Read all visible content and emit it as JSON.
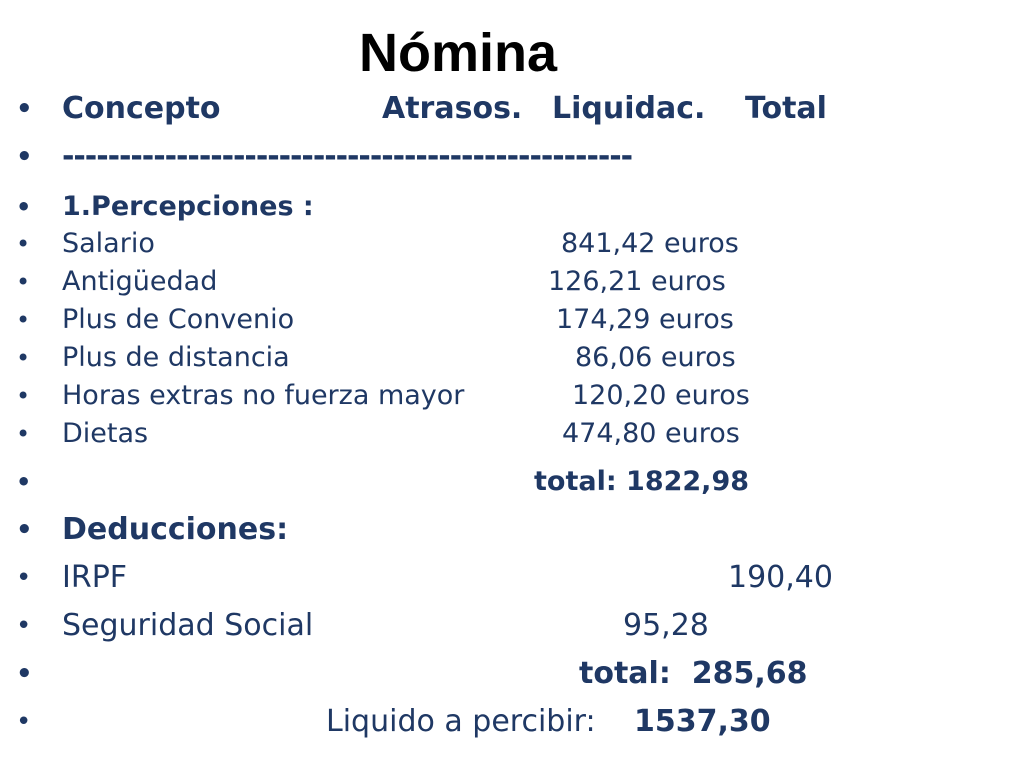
{
  "title": "Nómina",
  "bullet_glyph": "•",
  "header": {
    "concepto": "Concepto",
    "atrasos": "Atrasos.",
    "liquidac": "Liquidac.",
    "total": "Total"
  },
  "separator": "--------------------------------------------------",
  "percepciones": {
    "heading": "1.Percepciones :",
    "items": [
      {
        "concept": "Salario",
        "amount": "841,42 euros"
      },
      {
        "concept": "Antigüedad",
        "amount": "126,21 euros"
      },
      {
        "concept": "Plus de Convenio",
        "amount": "174,29 euros"
      },
      {
        "concept": "Plus de distancia",
        "amount": "86,06 euros"
      },
      {
        "concept": "Horas extras no fuerza mayor",
        "amount": "120,20 euros"
      },
      {
        "concept": "Dietas",
        "amount": "474,80 euros"
      }
    ],
    "total": "total: 1822,98"
  },
  "deducciones": {
    "heading": "Deducciones:",
    "items": [
      {
        "concept": "IRPF",
        "amount": "190,40"
      },
      {
        "concept": "Seguridad Social",
        "amount": "95,28"
      }
    ],
    "total": "total:  285,68"
  },
  "liquido": {
    "label": "Liquido a percibir:",
    "value": "1537,30"
  }
}
